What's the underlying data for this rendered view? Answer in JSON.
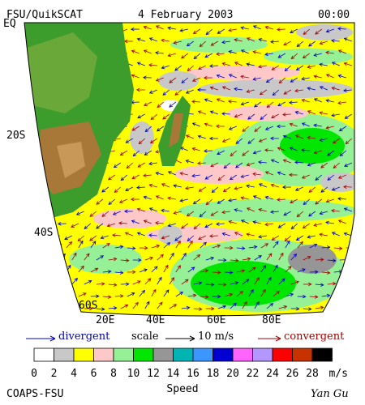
{
  "header": {
    "title": "FSU/QuikSCAT",
    "date": "4 February 2003",
    "time": "00:00"
  },
  "map": {
    "lat_labels": [
      "EQ",
      "20S",
      "40S",
      "60S"
    ],
    "lon_labels": [
      "20E",
      "40E",
      "60E",
      "80E"
    ]
  },
  "legend": {
    "divergent": "divergent",
    "scale": "scale",
    "scale_value": "10 m/s",
    "convergent": "convergent"
  },
  "colorbar": {
    "labels": [
      0,
      2,
      4,
      6,
      8,
      10,
      12,
      14,
      16,
      18,
      20,
      22,
      24,
      26,
      28
    ],
    "unit": "m/s",
    "title": "Speed",
    "colors": [
      "#ffffff",
      "#c8c8c8",
      "#ffff00",
      "#ffc8c8",
      "#96f096",
      "#00e600",
      "#969696",
      "#00b4b4",
      "#3c96ff",
      "#0000d2",
      "#ff64ff",
      "#b496ff",
      "#ff0000",
      "#c83200",
      "#000000"
    ]
  },
  "footer": {
    "institution": "COAPS-FSU",
    "author": "Yan Gu"
  }
}
